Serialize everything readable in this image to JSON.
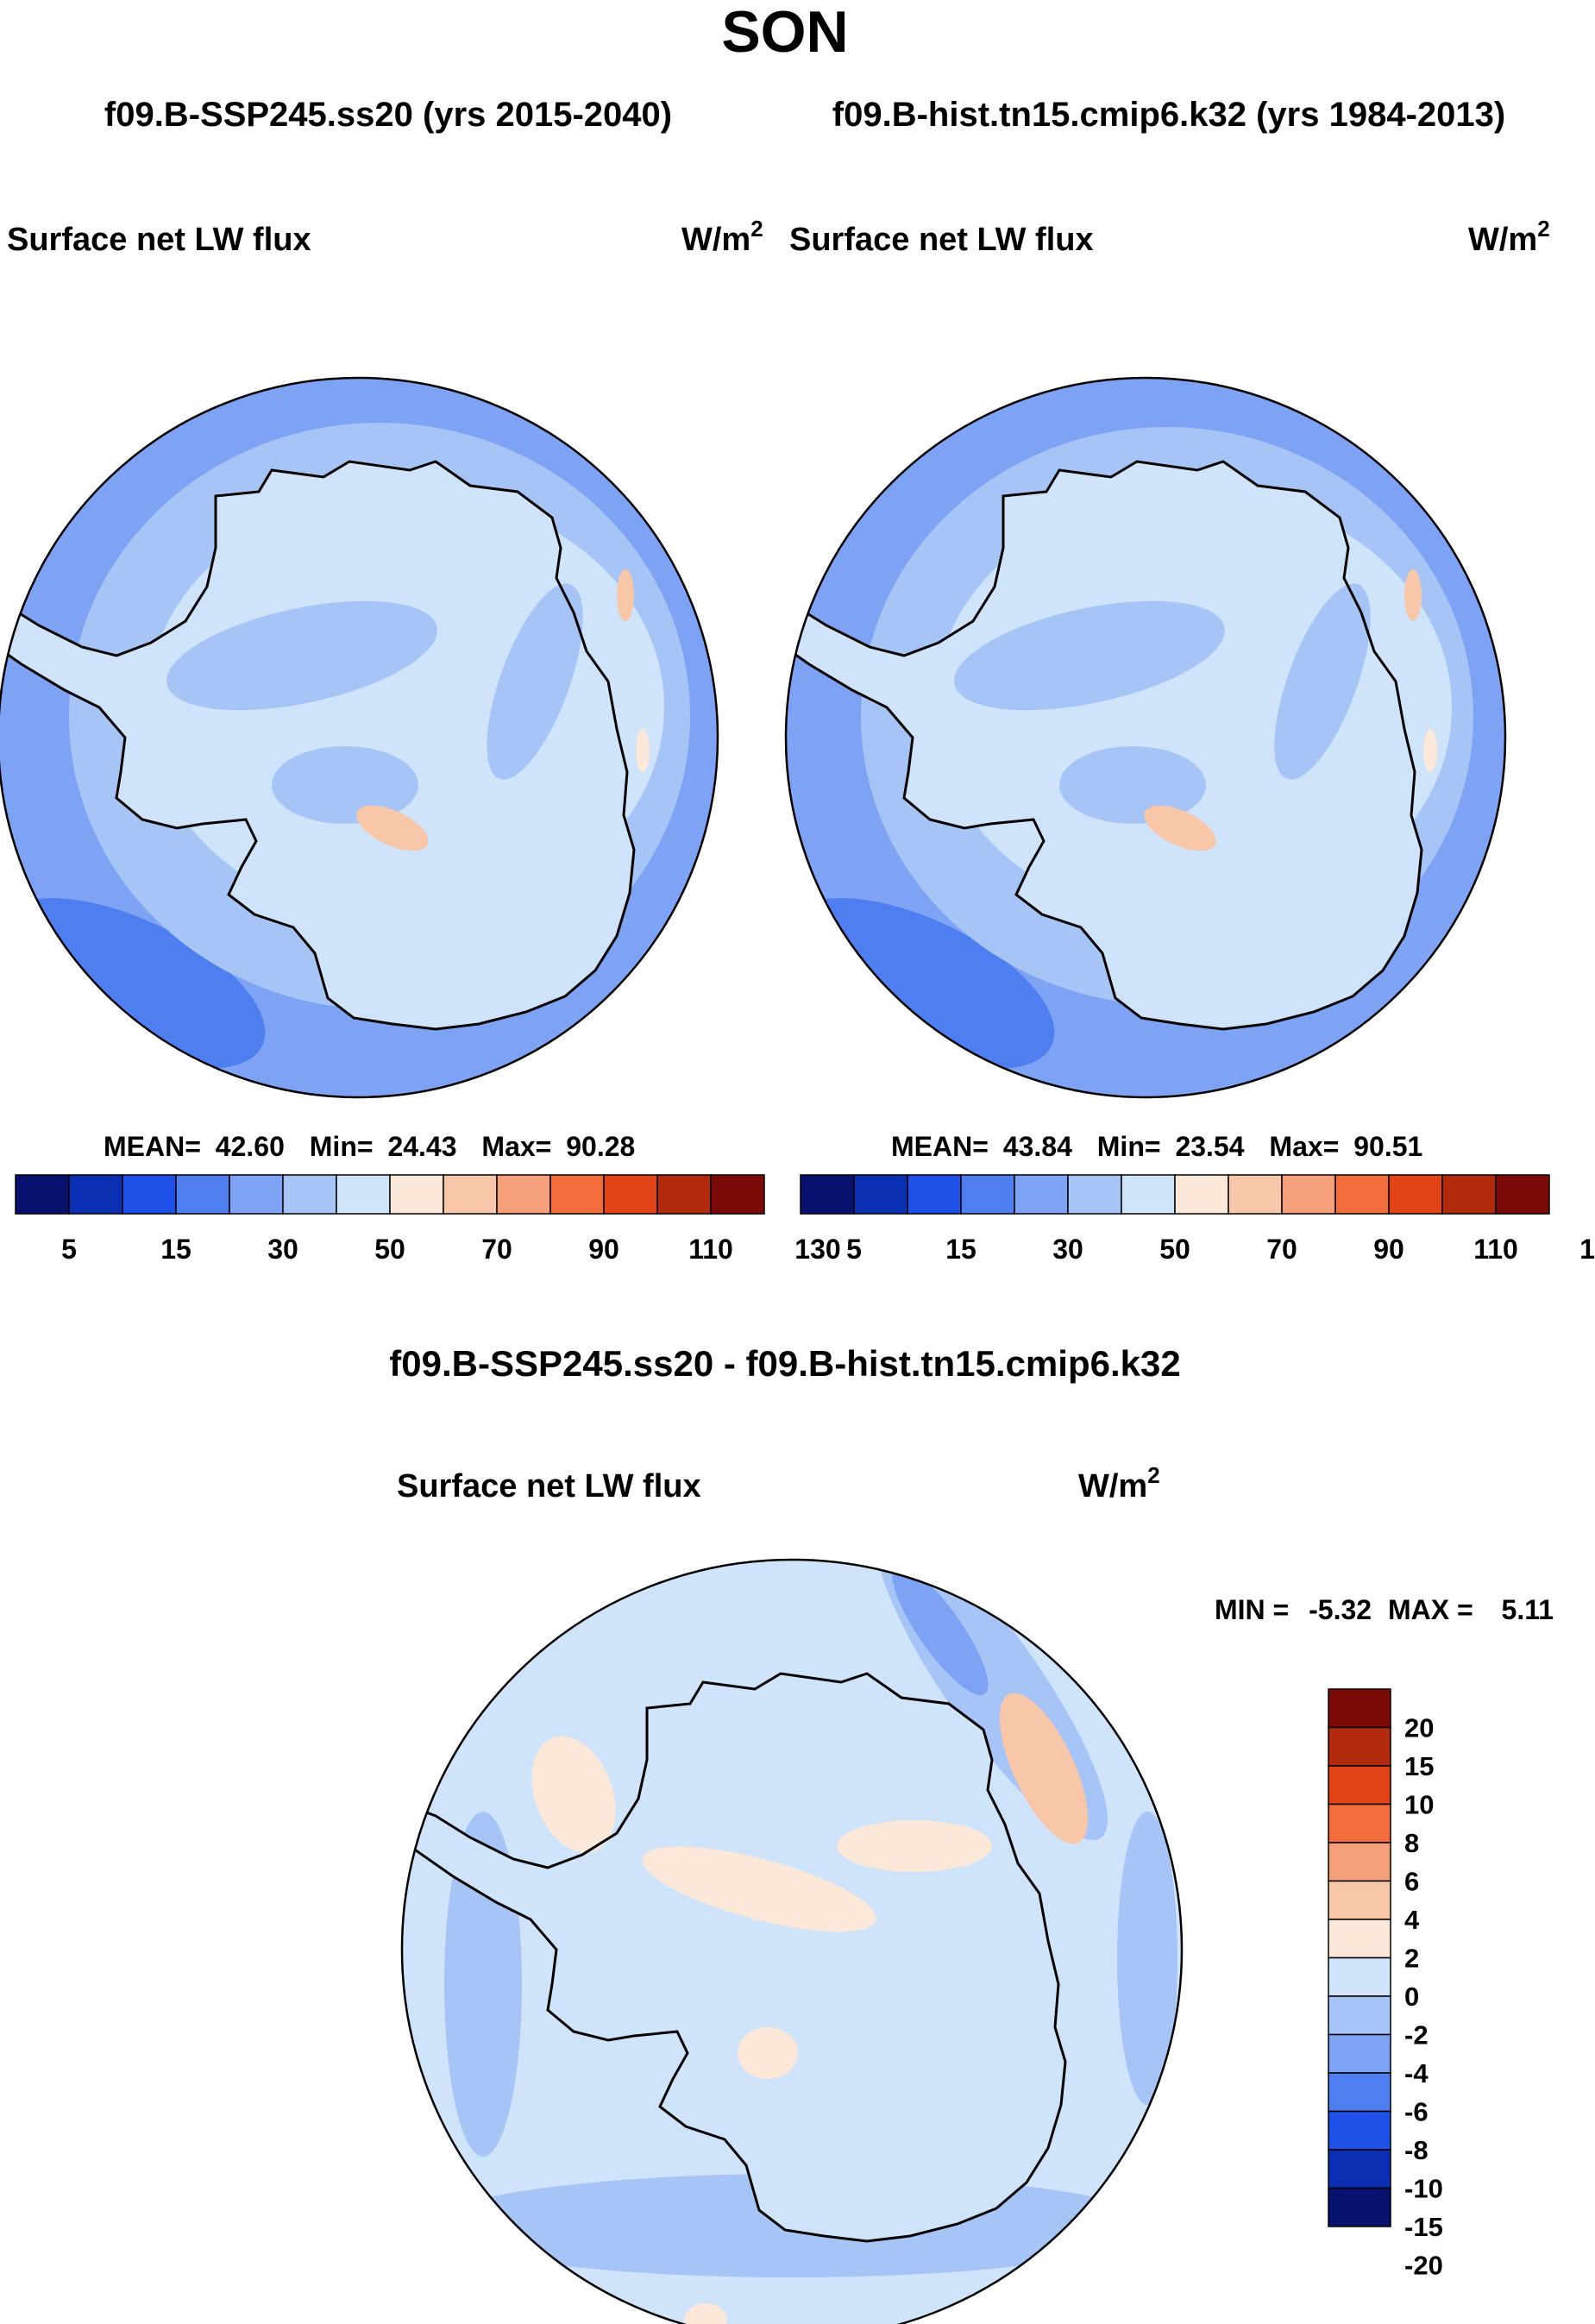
{
  "title": "SON",
  "subtitle": {
    "case_a": "f09.B-SSP245.ss20 (yrs 2015-2040)",
    "case_b": "f09.B-hist.tn15.cmip6.k32 (yrs 1984-2013)"
  },
  "diff_title": "f09.B-SSP245.ss20 - f09.B-hist.tn15.cmip6.k32",
  "panels": {
    "left": {
      "variable": "Surface net LW flux",
      "units": "W/m",
      "units_exp": "2",
      "stats": {
        "mean_label": "MEAN=",
        "mean": "42.60",
        "min_label": "Min=",
        "min": "24.43",
        "max_label": "Max=",
        "max": "90.28"
      }
    },
    "right": {
      "variable": "Surface net LW flux",
      "units": "W/m",
      "units_exp": "2",
      "stats": {
        "mean_label": "MEAN=",
        "mean": "43.84",
        "min_label": "Min=",
        "min": "23.54",
        "max_label": "Max=",
        "max": "90.51"
      }
    },
    "diff": {
      "variable": "Surface net LW flux",
      "units": "W/m",
      "units_exp": "2",
      "stats": {
        "min_label": "MIN =",
        "min": "-5.32",
        "max_label": "MAX =",
        "max": "5.11"
      }
    }
  },
  "colorbar_abs": {
    "colors": [
      "#08126e",
      "#0b2fb2",
      "#1f50e8",
      "#4f7ef0",
      "#7ea3f4",
      "#a7c4f6",
      "#cfe3fb",
      "#fbe8d8",
      "#f8c6a9",
      "#f5a07a",
      "#f26c3c",
      "#e24317",
      "#b12a0c",
      "#7b0a07"
    ],
    "labels": [
      "5",
      "15",
      "30",
      "50",
      "70",
      "90",
      "110",
      "130"
    ]
  },
  "colorbar_diff": {
    "colors": [
      "#7b0a07",
      "#b12a0c",
      "#e24317",
      "#f26c3c",
      "#f5a07a",
      "#f8c6a9",
      "#fbe8d8",
      "#cfe3fb",
      "#a7c4f6",
      "#7ea3f4",
      "#4f7ef0",
      "#1f50e8",
      "#0b2fb2",
      "#08126e"
    ],
    "labels": [
      "20",
      "15",
      "10",
      "8",
      "6",
      "4",
      "2",
      "0",
      "-2",
      "-4",
      "-6",
      "-8",
      "-10",
      "-15",
      "-20"
    ]
  },
  "map_colors": {
    "ocean_outer": "#7ea3f4",
    "ocean_mid": "#a7c4f6",
    "ice_inner": "#cfe3fb",
    "land_blue": "#a7c4f6",
    "warm_patch": "#f8c6a9",
    "deep_blue": "#4f7ef0",
    "diff_base": "#cfe3fb",
    "diff_blue": "#a7c4f6",
    "diff_warm": "#fbe8d8"
  }
}
